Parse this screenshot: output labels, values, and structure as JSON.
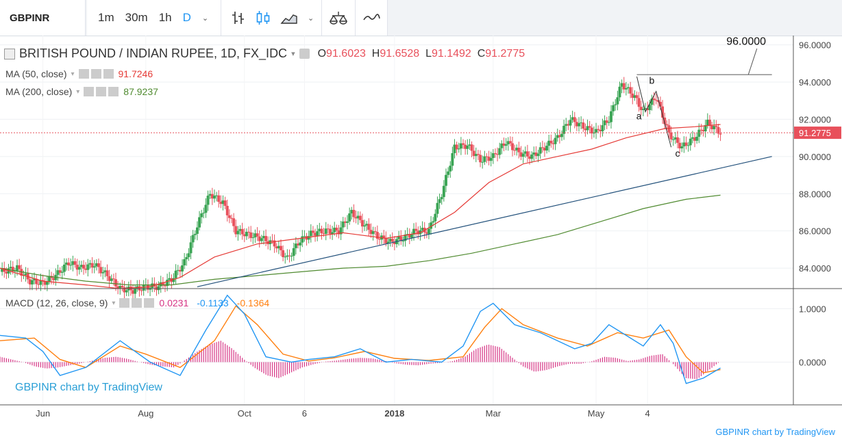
{
  "toolbar": {
    "symbol": "GBPINR",
    "intervals": [
      "1m",
      "30m",
      "1h",
      "D"
    ],
    "active_interval": "D",
    "icons": [
      "bar-chart-icon",
      "candle-chart-icon",
      "area-chart-icon",
      "chevron-down-icon",
      "indicators-icon",
      "compare-icon"
    ]
  },
  "header": {
    "title": "BRITISH POUND / INDIAN RUPEE, 1D, FX_IDC",
    "ohlc": [
      {
        "label": "O",
        "value": "91.6023"
      },
      {
        "label": "H",
        "value": "91.6528"
      },
      {
        "label": "L",
        "value": "91.1492"
      },
      {
        "label": "C",
        "value": "91.2775"
      }
    ],
    "ma50": {
      "label": "MA (50, close)",
      "value": "91.7246"
    },
    "ma200": {
      "label": "MA (200, close)",
      "value": "87.9237"
    },
    "macd": {
      "label": "MACD (12, 26, close, 9)",
      "hist": "0.0231",
      "macd": "-0.1133",
      "signal": "-0.1364"
    }
  },
  "colors": {
    "up": "#3aa454",
    "down": "#e8505b",
    "ma50": "#e53935",
    "ma200": "#4f8a2f",
    "trend": "#1f4e79",
    "macd_line": "#2196f3",
    "signal_line": "#ff7f0e",
    "hist": "#d63384"
  },
  "watermark": "GBPINR chart by TradingView",
  "footer": "GBPINR chart by TradingView",
  "chart_data": [
    {
      "type": "candlestick",
      "title": "BRITISH POUND / INDIAN RUPEE, 1D, FX_IDC",
      "x_ticks": [
        "Jun",
        "Aug",
        "Oct",
        "6",
        "2018",
        "Mar",
        "May",
        "4"
      ],
      "y_ticks": [
        "84.0000",
        "86.0000",
        "88.0000",
        "90.0000",
        "92.0000",
        "94.0000",
        "96.0000"
      ],
      "ylim": [
        82.9,
        96.5
      ],
      "last_price": "91.2775",
      "price_path": [
        [
          0,
          83.8
        ],
        [
          4,
          84.0
        ],
        [
          7,
          83.3
        ],
        [
          10,
          83.2
        ],
        [
          13,
          83.6
        ],
        [
          16,
          84.3
        ],
        [
          19,
          84.0
        ],
        [
          22,
          84.2
        ],
        [
          25,
          83.6
        ],
        [
          28,
          82.9
        ],
        [
          31,
          82.8
        ],
        [
          34,
          83.0
        ],
        [
          37,
          83.0
        ],
        [
          40,
          83.4
        ],
        [
          43,
          84.3
        ],
        [
          46,
          86.3
        ],
        [
          49,
          88.0
        ],
        [
          52,
          87.5
        ],
        [
          55,
          86.0
        ],
        [
          58,
          85.8
        ],
        [
          61,
          85.6
        ],
        [
          64,
          85.3
        ],
        [
          67,
          84.5
        ],
        [
          70,
          85.5
        ],
        [
          73,
          85.9
        ],
        [
          76,
          86.0
        ],
        [
          79,
          86.0
        ],
        [
          82,
          87.0
        ],
        [
          85,
          86.3
        ],
        [
          88,
          85.7
        ],
        [
          91,
          85.4
        ],
        [
          94,
          85.6
        ],
        [
          97,
          86.0
        ],
        [
          100,
          86.0
        ],
        [
          103,
          88.0
        ],
        [
          106,
          90.5
        ],
        [
          109,
          90.6
        ],
        [
          112,
          89.8
        ],
        [
          115,
          90.0
        ],
        [
          118,
          90.8
        ],
        [
          121,
          90.2
        ],
        [
          124,
          90.0
        ],
        [
          127,
          90.5
        ],
        [
          130,
          91.0
        ],
        [
          133,
          92.0
        ],
        [
          136,
          91.6
        ],
        [
          139,
          91.3
        ],
        [
          142,
          92.0
        ],
        [
          145,
          93.9
        ],
        [
          148,
          93.2
        ],
        [
          150,
          92.4
        ],
        [
          153,
          93.2
        ],
        [
          156,
          91.2
        ],
        [
          159,
          90.5
        ],
        [
          162,
          91.0
        ],
        [
          165,
          91.8
        ],
        [
          168,
          91.28
        ]
      ],
      "ma50": [
        [
          0,
          84.0
        ],
        [
          10,
          83.3
        ],
        [
          20,
          83.1
        ],
        [
          28,
          82.9
        ],
        [
          35,
          83.0
        ],
        [
          42,
          83.5
        ],
        [
          50,
          84.6
        ],
        [
          60,
          85.3
        ],
        [
          70,
          85.6
        ],
        [
          80,
          85.9
        ],
        [
          90,
          85.6
        ],
        [
          98,
          85.9
        ],
        [
          106,
          87.0
        ],
        [
          114,
          88.6
        ],
        [
          122,
          89.6
        ],
        [
          130,
          90.0
        ],
        [
          138,
          90.4
        ],
        [
          146,
          91.0
        ],
        [
          155,
          91.5
        ],
        [
          162,
          91.6
        ],
        [
          168,
          91.72
        ]
      ],
      "ma200": [
        [
          0,
          84.0
        ],
        [
          10,
          83.6
        ],
        [
          20,
          83.3
        ],
        [
          30,
          83.1
        ],
        [
          40,
          83.1
        ],
        [
          50,
          83.4
        ],
        [
          60,
          83.6
        ],
        [
          70,
          83.8
        ],
        [
          80,
          84.0
        ],
        [
          90,
          84.1
        ],
        [
          100,
          84.4
        ],
        [
          110,
          84.8
        ],
        [
          120,
          85.3
        ],
        [
          130,
          85.8
        ],
        [
          140,
          86.5
        ],
        [
          150,
          87.2
        ],
        [
          160,
          87.7
        ],
        [
          168,
          87.92
        ]
      ],
      "trend_line": [
        [
          46,
          83.0
        ],
        [
          180,
          90.0
        ]
      ],
      "annotations": [
        {
          "text": "96.0000",
          "x": 174,
          "y": 96.0
        },
        {
          "text": "b",
          "x": 152,
          "y": 93.9
        },
        {
          "text": "a",
          "x": 149,
          "y": 92.0
        },
        {
          "text": "c",
          "x": 158,
          "y": 90.0
        }
      ]
    },
    {
      "type": "line",
      "title": "MACD (12, 26, close, 9)",
      "y_ticks": [
        "0.0000",
        "1.0000"
      ],
      "ylim": [
        -0.8,
        1.35
      ],
      "macd": [
        [
          0,
          0.5
        ],
        [
          6,
          0.45
        ],
        [
          10,
          0.2
        ],
        [
          14,
          -0.25
        ],
        [
          20,
          -0.1
        ],
        [
          28,
          0.4
        ],
        [
          35,
          0.0
        ],
        [
          42,
          -0.25
        ],
        [
          48,
          0.6
        ],
        [
          53,
          1.25
        ],
        [
          57,
          0.9
        ],
        [
          62,
          0.1
        ],
        [
          68,
          0.0
        ],
        [
          72,
          0.05
        ],
        [
          78,
          0.1
        ],
        [
          84,
          0.25
        ],
        [
          90,
          0.0
        ],
        [
          96,
          0.05
        ],
        [
          103,
          0.0
        ],
        [
          108,
          0.3
        ],
        [
          112,
          0.95
        ],
        [
          115,
          1.1
        ],
        [
          120,
          0.7
        ],
        [
          126,
          0.55
        ],
        [
          134,
          0.25
        ],
        [
          138,
          0.35
        ],
        [
          142,
          0.7
        ],
        [
          146,
          0.5
        ],
        [
          150,
          0.3
        ],
        [
          154,
          0.7
        ],
        [
          157,
          0.35
        ],
        [
          160,
          -0.4
        ],
        [
          164,
          -0.3
        ],
        [
          168,
          -0.11
        ]
      ],
      "signal": [
        [
          0,
          0.4
        ],
        [
          8,
          0.45
        ],
        [
          14,
          0.05
        ],
        [
          20,
          -0.1
        ],
        [
          28,
          0.3
        ],
        [
          34,
          0.15
        ],
        [
          42,
          -0.1
        ],
        [
          50,
          0.4
        ],
        [
          55,
          1.05
        ],
        [
          60,
          0.7
        ],
        [
          66,
          0.15
        ],
        [
          72,
          0.02
        ],
        [
          78,
          0.08
        ],
        [
          85,
          0.2
        ],
        [
          92,
          0.07
        ],
        [
          100,
          0.03
        ],
        [
          108,
          0.1
        ],
        [
          113,
          0.65
        ],
        [
          117,
          1.0
        ],
        [
          122,
          0.7
        ],
        [
          130,
          0.45
        ],
        [
          137,
          0.3
        ],
        [
          144,
          0.55
        ],
        [
          150,
          0.45
        ],
        [
          156,
          0.6
        ],
        [
          160,
          0.1
        ],
        [
          164,
          -0.2
        ],
        [
          168,
          -0.14
        ]
      ],
      "histogram_values": [
        0.1,
        0.05,
        0.0,
        -0.08,
        -0.12,
        -0.1,
        -0.06,
        -0.02,
        0.03,
        0.08,
        0.1,
        0.06,
        0.0,
        -0.05,
        -0.08,
        -0.1,
        0.05,
        0.2,
        0.33,
        0.4,
        0.25,
        0.05,
        -0.12,
        -0.25,
        -0.3,
        -0.2,
        -0.1,
        -0.04,
        0.01,
        0.03,
        0.06,
        0.08,
        0.07,
        0.03,
        -0.02,
        -0.05,
        -0.06,
        -0.03,
        -0.01,
        0.02,
        0.1,
        0.25,
        0.33,
        0.28,
        0.1,
        -0.08,
        -0.18,
        -0.15,
        -0.08,
        -0.03,
        -0.03,
        0.02,
        0.1,
        0.08,
        0.02,
        0.05,
        0.12,
        0.15,
        -0.05,
        -0.3,
        -0.32,
        -0.15,
        0.02
      ]
    }
  ]
}
